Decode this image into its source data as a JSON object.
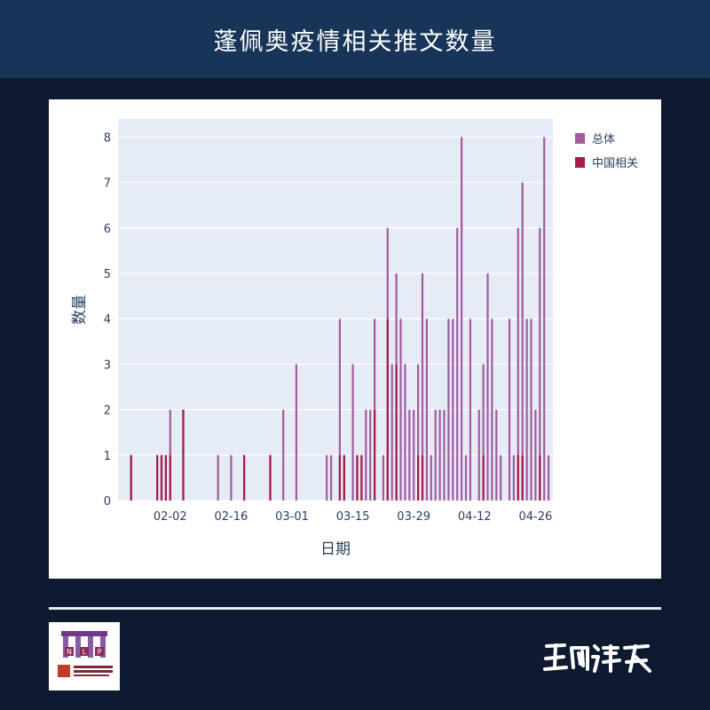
{
  "header": {
    "title": "蓬佩奥疫情相关推文数量"
  },
  "colors": {
    "page_background": "#0e1a2f",
    "header_background": "#183559",
    "plot_background": "#e5ecf6",
    "series_total": "#a35aa0",
    "series_china": "#a81a48",
    "text": "#2a3f5f"
  },
  "chart_data": {
    "type": "bar",
    "barmode": "overlay",
    "title": "",
    "xlabel": "日期",
    "ylabel": "数量",
    "ylim": [
      0,
      8.4
    ],
    "yticks": [
      0,
      1,
      2,
      3,
      4,
      5,
      6,
      7,
      8
    ],
    "x_range": [
      "2020-01-21",
      "2020-04-30"
    ],
    "xticks": [
      {
        "date": "2020-02-02",
        "label": "02-02"
      },
      {
        "date": "2020-02-16",
        "label": "02-16"
      },
      {
        "date": "2020-03-01",
        "label": "03-01"
      },
      {
        "date": "2020-03-15",
        "label": "03-15"
      },
      {
        "date": "2020-03-29",
        "label": "03-29"
      },
      {
        "date": "2020-04-12",
        "label": "04-12"
      },
      {
        "date": "2020-04-26",
        "label": "04-26"
      }
    ],
    "grid": true,
    "legend_position": "top-right",
    "series": [
      {
        "name": "总体",
        "color": "#a35aa0",
        "points": [
          [
            "2020-01-24",
            1
          ],
          [
            "2020-01-30",
            1
          ],
          [
            "2020-01-31",
            1
          ],
          [
            "2020-02-01",
            1
          ],
          [
            "2020-02-02",
            2
          ],
          [
            "2020-02-05",
            2
          ],
          [
            "2020-02-13",
            1
          ],
          [
            "2020-02-16",
            1
          ],
          [
            "2020-02-19",
            1
          ],
          [
            "2020-02-25",
            1
          ],
          [
            "2020-02-28",
            2
          ],
          [
            "2020-03-02",
            3
          ],
          [
            "2020-03-09",
            1
          ],
          [
            "2020-03-10",
            1
          ],
          [
            "2020-03-12",
            4
          ],
          [
            "2020-03-13",
            1
          ],
          [
            "2020-03-15",
            3
          ],
          [
            "2020-03-16",
            1
          ],
          [
            "2020-03-17",
            1
          ],
          [
            "2020-03-18",
            2
          ],
          [
            "2020-03-19",
            2
          ],
          [
            "2020-03-20",
            4
          ],
          [
            "2020-03-22",
            1
          ],
          [
            "2020-03-23",
            6
          ],
          [
            "2020-03-24",
            3
          ],
          [
            "2020-03-25",
            5
          ],
          [
            "2020-03-26",
            4
          ],
          [
            "2020-03-27",
            3
          ],
          [
            "2020-03-28",
            2
          ],
          [
            "2020-03-29",
            2
          ],
          [
            "2020-03-30",
            3
          ],
          [
            "2020-03-31",
            5
          ],
          [
            "2020-04-01",
            4
          ],
          [
            "2020-04-02",
            1
          ],
          [
            "2020-04-03",
            2
          ],
          [
            "2020-04-04",
            2
          ],
          [
            "2020-04-05",
            2
          ],
          [
            "2020-04-06",
            4
          ],
          [
            "2020-04-07",
            4
          ],
          [
            "2020-04-08",
            6
          ],
          [
            "2020-04-09",
            8
          ],
          [
            "2020-04-10",
            1
          ],
          [
            "2020-04-11",
            4
          ],
          [
            "2020-04-13",
            2
          ],
          [
            "2020-04-14",
            3
          ],
          [
            "2020-04-15",
            5
          ],
          [
            "2020-04-16",
            4
          ],
          [
            "2020-04-17",
            2
          ],
          [
            "2020-04-18",
            1
          ],
          [
            "2020-04-20",
            4
          ],
          [
            "2020-04-21",
            1
          ],
          [
            "2020-04-22",
            6
          ],
          [
            "2020-04-23",
            7
          ],
          [
            "2020-04-24",
            4
          ],
          [
            "2020-04-25",
            4
          ],
          [
            "2020-04-26",
            2
          ],
          [
            "2020-04-27",
            6
          ],
          [
            "2020-04-28",
            8
          ],
          [
            "2020-04-29",
            1
          ]
        ]
      },
      {
        "name": "中国相关",
        "color": "#a81a48",
        "points": [
          [
            "2020-01-24",
            1
          ],
          [
            "2020-01-30",
            1
          ],
          [
            "2020-01-31",
            1
          ],
          [
            "2020-02-01",
            1
          ],
          [
            "2020-02-02",
            1
          ],
          [
            "2020-02-05",
            2
          ],
          [
            "2020-02-19",
            1
          ],
          [
            "2020-02-25",
            1
          ],
          [
            "2020-03-12",
            1
          ],
          [
            "2020-03-13",
            1
          ],
          [
            "2020-03-16",
            1
          ],
          [
            "2020-03-17",
            1
          ],
          [
            "2020-03-20",
            2
          ],
          [
            "2020-03-23",
            4
          ],
          [
            "2020-03-25",
            3
          ],
          [
            "2020-03-30",
            1
          ],
          [
            "2020-03-31",
            1
          ],
          [
            "2020-04-14",
            1
          ],
          [
            "2020-04-22",
            1
          ],
          [
            "2020-04-23",
            1
          ],
          [
            "2020-04-27",
            1
          ]
        ]
      }
    ]
  },
  "footer": {
    "logo_icon": "nlp-lab-logo-icon",
    "signature_icon": "handwritten-signature-icon",
    "logo_letters": [
      "N",
      "L",
      "P"
    ]
  }
}
